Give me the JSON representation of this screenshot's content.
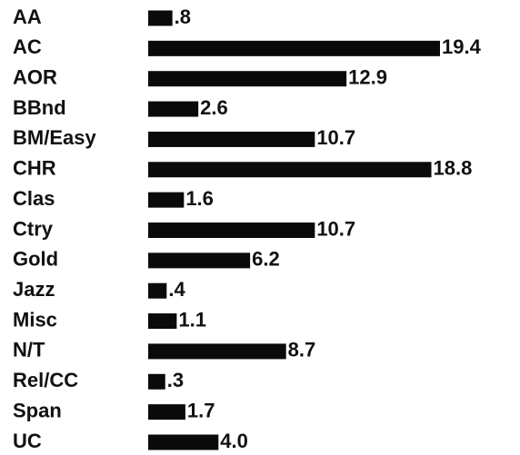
{
  "chart_data": {
    "type": "bar",
    "orientation": "horizontal",
    "categories": [
      "AA",
      "AC",
      "AOR",
      "BBnd",
      "BM/Easy",
      "CHR",
      "Clas",
      "Ctry",
      "Gold",
      "Jazz",
      "Misc",
      "N/T",
      "Rel/CC",
      "Span",
      "UC"
    ],
    "values": [
      0.8,
      19.4,
      12.9,
      2.6,
      10.7,
      18.8,
      1.6,
      10.7,
      6.2,
      0.4,
      1.1,
      8.7,
      0.3,
      1.7,
      4.0
    ],
    "value_labels": [
      ".8",
      "19.4",
      "12.9",
      "2.6",
      "10.7",
      "18.8",
      "1.6",
      "10.7",
      "6.2",
      ".4",
      "1.1",
      "8.7",
      ".3",
      "1.7",
      "4.0"
    ],
    "color": "#0a0a0a"
  }
}
